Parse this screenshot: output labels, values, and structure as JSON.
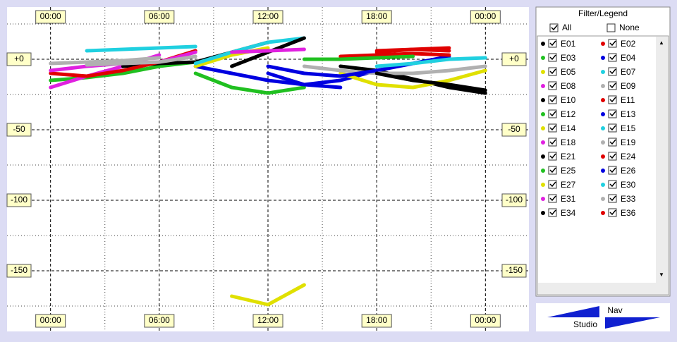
{
  "chart_data": {
    "type": "line",
    "legend_title": "Filter/Legend",
    "filter_all": "All",
    "filter_none": "None",
    "logo_top": "Nav",
    "logo_bottom": "Studio",
    "x": [
      0,
      2,
      4,
      6,
      8,
      10,
      12,
      14,
      16,
      18,
      20,
      22,
      24
    ],
    "xlim": [
      -2.4,
      26.4
    ],
    "ylim": [
      37,
      -193
    ],
    "xticks": [
      {
        "value": 0,
        "label": "00:00"
      },
      {
        "value": 6,
        "label": "06:00"
      },
      {
        "value": 12,
        "label": "12:00"
      },
      {
        "value": 18,
        "label": "18:00"
      },
      {
        "value": 24,
        "label": "00:00"
      }
    ],
    "xminor": [
      3,
      9,
      15,
      21
    ],
    "yticks": [
      {
        "value": 0,
        "label": "+0"
      },
      -50,
      -100,
      -150
    ],
    "yminor": [
      25,
      -25,
      -75,
      -125,
      -175
    ],
    "grid": true,
    "series": [
      {
        "name": "E01",
        "color": "#000000",
        "values": [
          null,
          null,
          null,
          null,
          null,
          null,
          null,
          null,
          -5,
          -8,
          -14,
          -20,
          -24
        ]
      },
      {
        "name": "E02",
        "color": "#e00000",
        "values": [
          null,
          null,
          null,
          null,
          null,
          null,
          null,
          null,
          null,
          5,
          7,
          8,
          null
        ]
      },
      {
        "name": "E03",
        "color": "#20c020",
        "values": [
          -15,
          -13,
          -10,
          -5,
          -2,
          null,
          null,
          null,
          null,
          null,
          null,
          null,
          null
        ]
      },
      {
        "name": "E04",
        "color": "#0000e0",
        "values": [
          null,
          null,
          null,
          null,
          null,
          null,
          -10,
          -18,
          -15,
          -8,
          -3,
          2,
          null
        ]
      },
      {
        "name": "E05",
        "color": "#e0e000",
        "values": [
          null,
          null,
          null,
          null,
          null,
          null,
          null,
          null,
          -10,
          -18,
          -20,
          -15,
          -8
        ]
      },
      {
        "name": "E07",
        "color": "#20d0e0",
        "values": [
          null,
          6,
          7,
          8,
          9,
          null,
          null,
          null,
          null,
          null,
          null,
          null,
          null
        ]
      },
      {
        "name": "E08",
        "color": "#e020e0",
        "values": [
          -20,
          -12,
          -5,
          3,
          null,
          null,
          null,
          null,
          null,
          null,
          null,
          null,
          null
        ]
      },
      {
        "name": "E09",
        "color": "#b0b0b0",
        "values": [
          null,
          null,
          null,
          null,
          null,
          null,
          null,
          -5,
          -8,
          -10,
          -10,
          -8,
          -5
        ]
      },
      {
        "name": "E10",
        "color": "#000000",
        "values": [
          null,
          null,
          -5,
          -3,
          -2,
          5,
          12,
          null,
          null,
          null,
          null,
          null,
          null
        ]
      },
      {
        "name": "E11",
        "color": "#e00000",
        "values": [
          -10,
          -12,
          -8,
          -2,
          6,
          null,
          null,
          null,
          null,
          null,
          null,
          null,
          null
        ]
      },
      {
        "name": "E12",
        "color": "#20c020",
        "values": [
          null,
          null,
          null,
          null,
          -10,
          -20,
          -24,
          -20,
          null,
          null,
          null,
          null,
          null
        ]
      },
      {
        "name": "E13",
        "color": "#0000e0",
        "values": [
          null,
          null,
          null,
          null,
          -5,
          -10,
          -15,
          -18,
          -20,
          null,
          null,
          null,
          null
        ]
      },
      {
        "name": "E14",
        "color": "#e0e000",
        "values": [
          null,
          null,
          null,
          null,
          -5,
          3,
          8,
          null,
          null,
          null,
          null,
          null,
          null
        ]
      },
      {
        "name": "E15",
        "color": "#20d0e0",
        "values": [
          null,
          null,
          null,
          null,
          -3,
          5,
          12,
          15,
          null,
          null,
          null,
          null,
          null
        ]
      },
      {
        "name": "E18",
        "color": "#e020e0",
        "values": [
          -8,
          -5,
          -3,
          -2,
          5,
          null,
          null,
          null,
          null,
          null,
          null,
          null,
          null
        ]
      },
      {
        "name": "E19",
        "color": "#b0b0b0",
        "values": [
          null,
          -4,
          -3,
          -2,
          2,
          null,
          null,
          null,
          null,
          null,
          null,
          null,
          null
        ]
      },
      {
        "name": "E21",
        "color": "#000000",
        "values": [
          null,
          null,
          null,
          null,
          null,
          -5,
          5,
          15,
          null,
          null,
          null,
          null,
          null
        ]
      },
      {
        "name": "E24",
        "color": "#e00000",
        "values": [
          null,
          null,
          null,
          null,
          null,
          null,
          null,
          null,
          2,
          3,
          4,
          3,
          null
        ]
      },
      {
        "name": "E25",
        "color": "#20c020",
        "values": [
          null,
          null,
          null,
          null,
          null,
          null,
          null,
          0,
          0,
          1,
          2,
          null,
          null
        ]
      },
      {
        "name": "E26",
        "color": "#0000e0",
        "values": [
          null,
          null,
          null,
          null,
          null,
          null,
          -5,
          -10,
          -12,
          -8,
          null,
          null,
          null
        ]
      },
      {
        "name": "E27",
        "color": "#e0e000",
        "values": [
          null,
          null,
          null,
          null,
          null,
          -168,
          -174,
          -160,
          null,
          null,
          null,
          null,
          null
        ]
      },
      {
        "name": "E30",
        "color": "#20d0e0",
        "values": [
          null,
          null,
          null,
          null,
          null,
          null,
          null,
          null,
          null,
          -5,
          -3,
          0,
          1
        ]
      },
      {
        "name": "E31",
        "color": "#e020e0",
        "values": [
          null,
          null,
          null,
          null,
          null,
          5,
          6,
          7,
          null,
          null,
          null,
          null,
          null
        ]
      },
      {
        "name": "E33",
        "color": "#b0b0b0",
        "values": [
          -3,
          -2,
          -1,
          1,
          null,
          null,
          null,
          null,
          null,
          null,
          null,
          null,
          null
        ]
      },
      {
        "name": "E34",
        "color": "#000000",
        "values": [
          null,
          null,
          null,
          null,
          null,
          null,
          null,
          null,
          null,
          -10,
          -15,
          -18,
          -22
        ]
      },
      {
        "name": "E36",
        "color": "#e00000",
        "values": [
          null,
          null,
          null,
          null,
          null,
          null,
          null,
          null,
          null,
          6,
          7,
          6,
          null
        ]
      }
    ]
  }
}
